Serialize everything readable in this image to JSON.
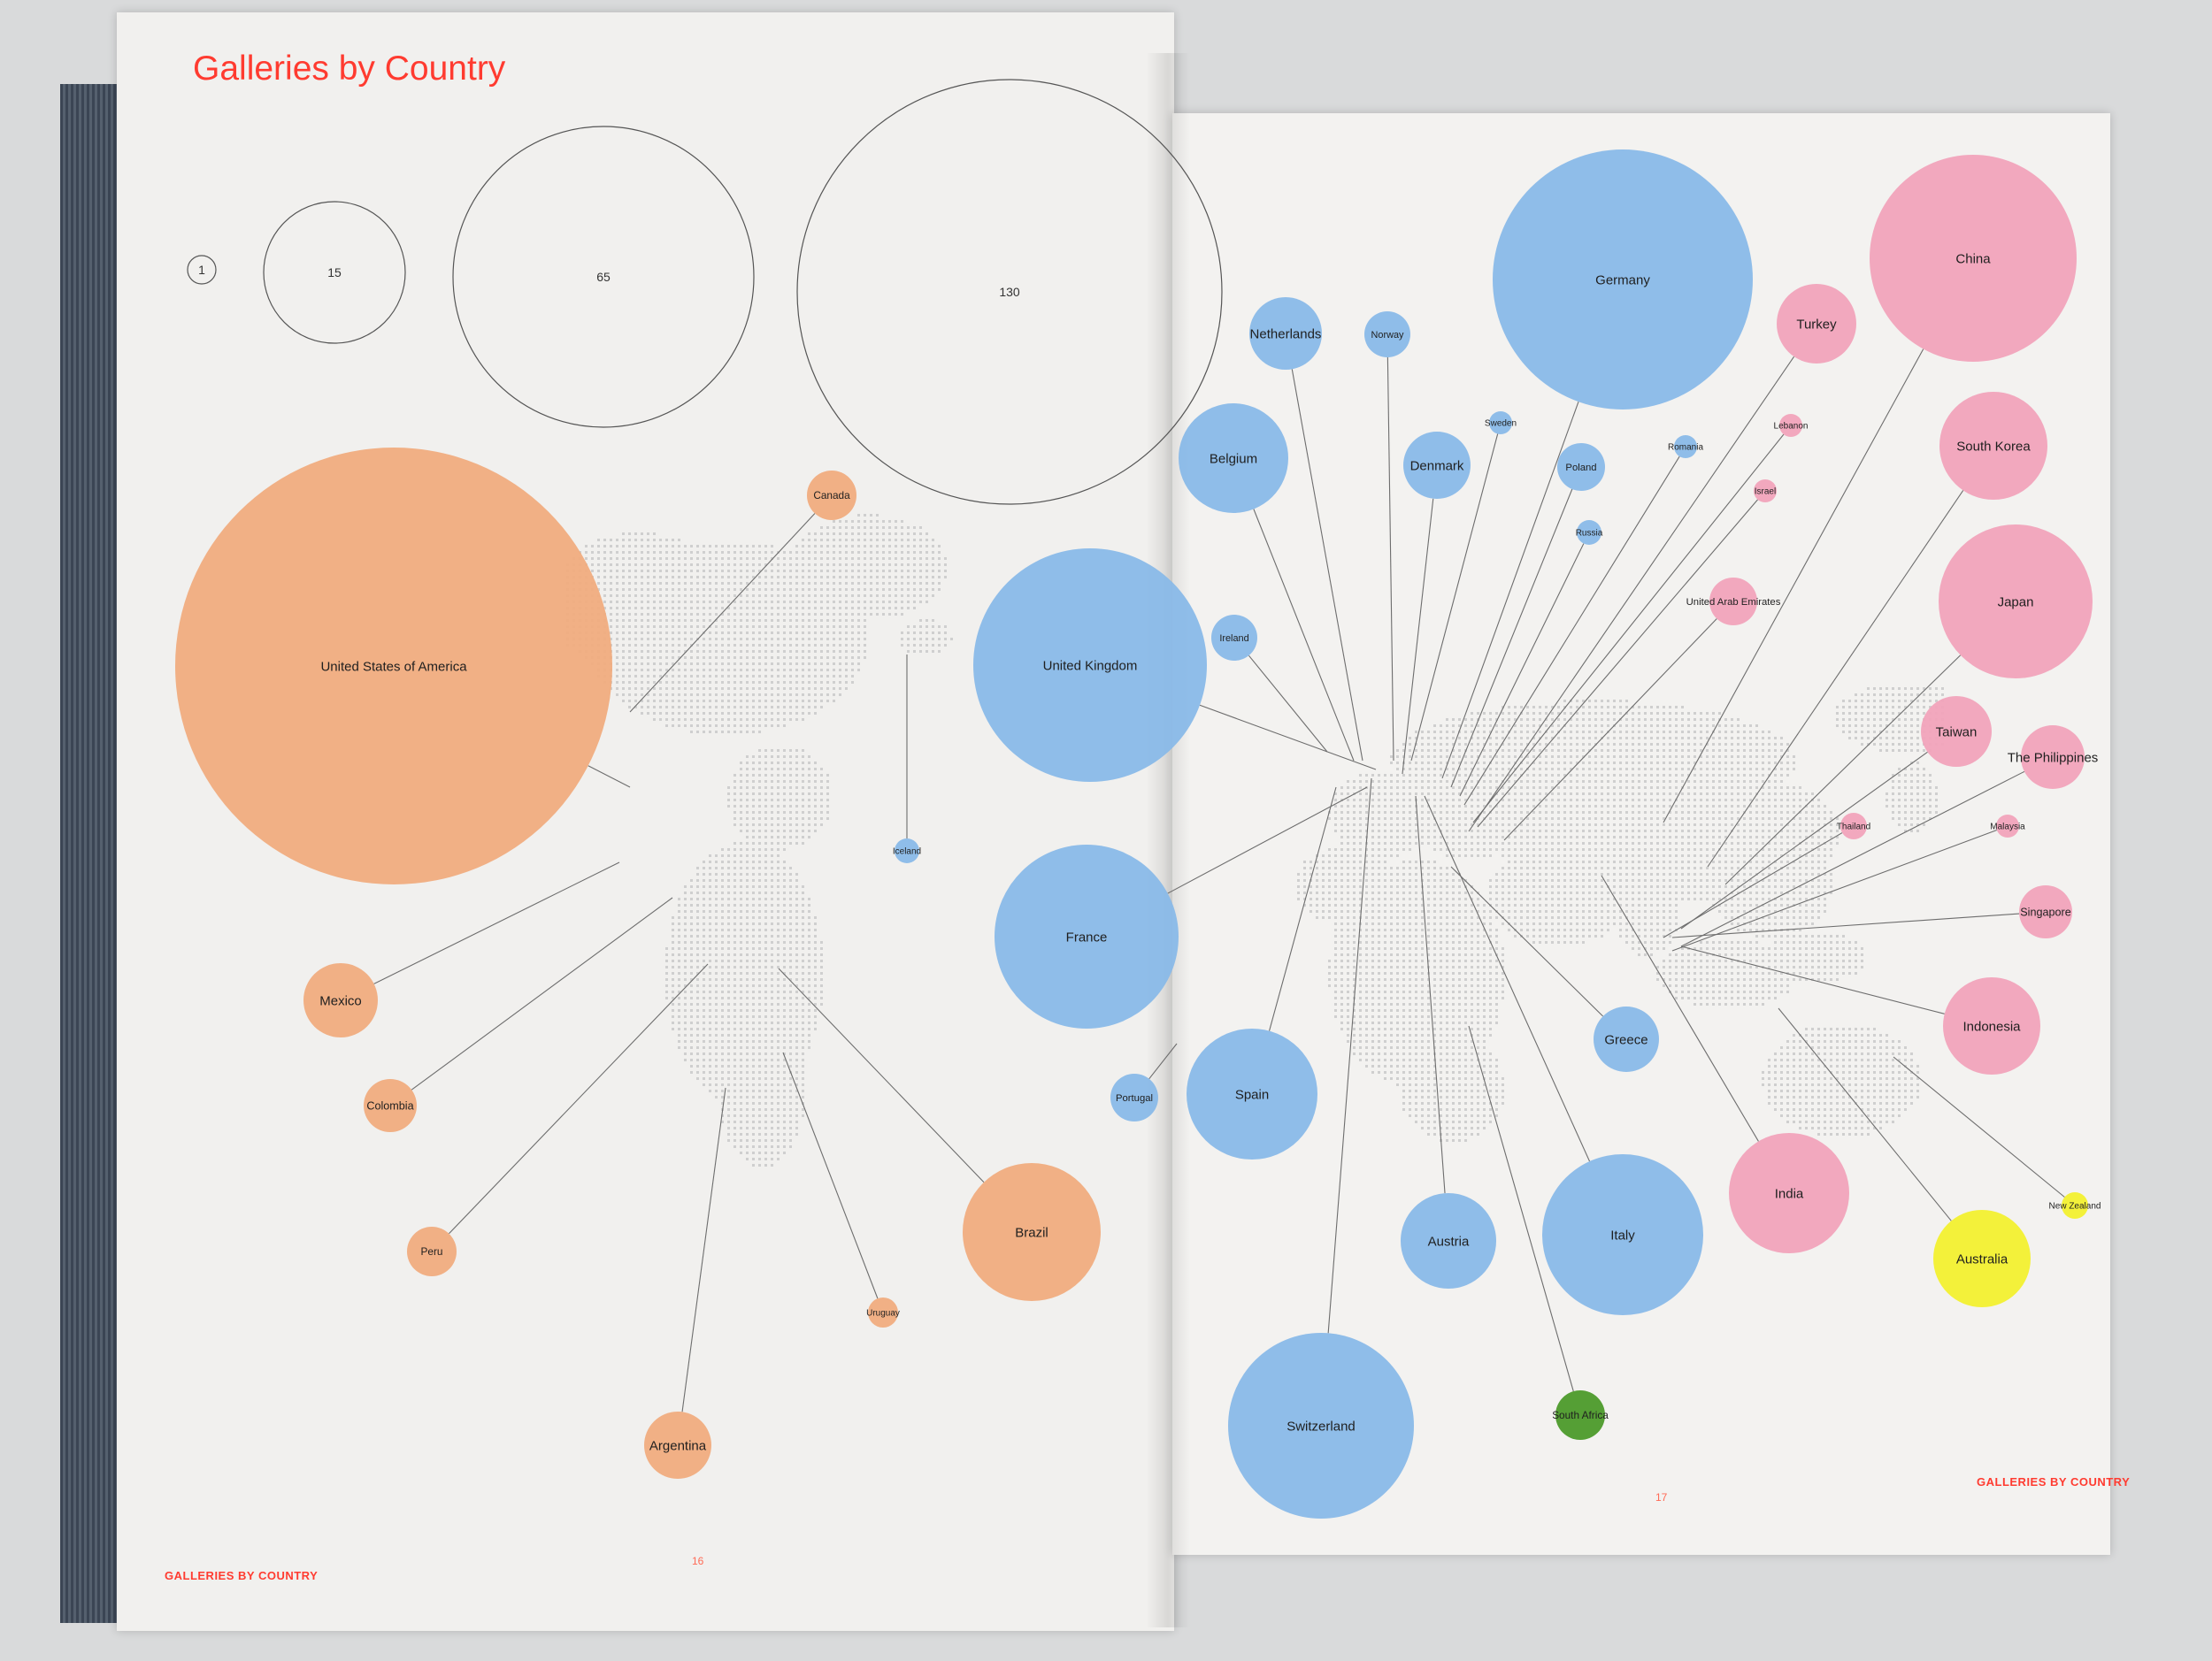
{
  "page": {
    "title": "Galleries by Country",
    "footer_left": "GALLERIES BY COUNTRY",
    "footer_right": "GALLERIES BY COUNTRY",
    "page_left": "16",
    "page_right": "17"
  },
  "legend": {
    "scale_values": [
      "1",
      "15",
      "65",
      "130"
    ]
  },
  "colors": {
    "americas": "#f0ac7e",
    "europe": "#89b9e8",
    "asia": "#f1a3bb",
    "oceania": "#f2f02f",
    "africa": "#4c9a2a",
    "title_red": "#ff3b30",
    "map_dots": "#cfcfcf",
    "leader_line": "#6d6d6d"
  },
  "countries": [
    {
      "name": "United States of America",
      "region": "americas"
    },
    {
      "name": "Canada",
      "region": "americas"
    },
    {
      "name": "Mexico",
      "region": "americas"
    },
    {
      "name": "Colombia",
      "region": "americas"
    },
    {
      "name": "Peru",
      "region": "americas"
    },
    {
      "name": "Brazil",
      "region": "americas"
    },
    {
      "name": "Uruguay",
      "region": "americas"
    },
    {
      "name": "Argentina",
      "region": "americas"
    },
    {
      "name": "Iceland",
      "region": "europe"
    },
    {
      "name": "United Kingdom",
      "region": "europe"
    },
    {
      "name": "France",
      "region": "europe"
    },
    {
      "name": "Portugal",
      "region": "europe"
    },
    {
      "name": "Spain",
      "region": "europe"
    },
    {
      "name": "Ireland",
      "region": "europe"
    },
    {
      "name": "Belgium",
      "region": "europe"
    },
    {
      "name": "Netherlands",
      "region": "europe"
    },
    {
      "name": "Norway",
      "region": "europe"
    },
    {
      "name": "Sweden",
      "region": "europe"
    },
    {
      "name": "Denmark",
      "region": "europe"
    },
    {
      "name": "Germany",
      "region": "europe"
    },
    {
      "name": "Poland",
      "region": "europe"
    },
    {
      "name": "Russia",
      "region": "europe"
    },
    {
      "name": "Romania",
      "region": "europe"
    },
    {
      "name": "Greece",
      "region": "europe"
    },
    {
      "name": "Austria",
      "region": "europe"
    },
    {
      "name": "Italy",
      "region": "europe"
    },
    {
      "name": "Switzerland",
      "region": "europe"
    },
    {
      "name": "South Africa",
      "region": "africa"
    },
    {
      "name": "Turkey",
      "region": "asia"
    },
    {
      "name": "Lebanon",
      "region": "asia"
    },
    {
      "name": "Israel",
      "region": "asia"
    },
    {
      "name": "United Arab Emirates",
      "region": "asia"
    },
    {
      "name": "China",
      "region": "asia"
    },
    {
      "name": "South Korea",
      "region": "asia"
    },
    {
      "name": "Japan",
      "region": "asia"
    },
    {
      "name": "Taiwan",
      "region": "asia"
    },
    {
      "name": "The Philippines",
      "region": "asia"
    },
    {
      "name": "Thailand",
      "region": "asia"
    },
    {
      "name": "Malaysia",
      "region": "asia"
    },
    {
      "name": "Singapore",
      "region": "asia"
    },
    {
      "name": "Indonesia",
      "region": "asia"
    },
    {
      "name": "India",
      "region": "asia"
    },
    {
      "name": "Australia",
      "region": "oceania"
    },
    {
      "name": "New Zealand",
      "region": "oceania"
    }
  ]
}
